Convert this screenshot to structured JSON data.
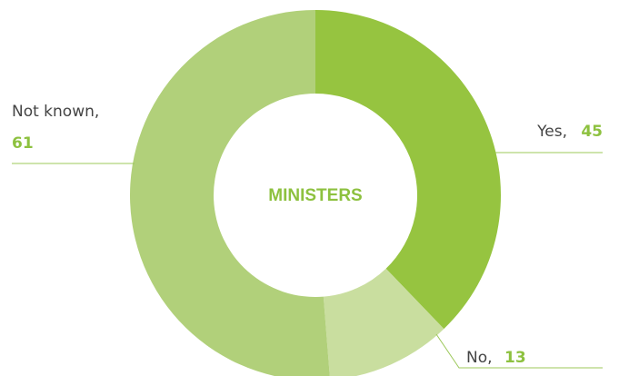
{
  "chart_data": {
    "type": "pie",
    "variant": "donut",
    "center_label": "MINISTERS",
    "categories": [
      "Yes",
      "No",
      "Not known"
    ],
    "values": [
      45,
      13,
      61
    ],
    "colors": [
      "#96c440",
      "#c9de9f",
      "#b1d07a"
    ],
    "value_color": "#8dc13f",
    "label_color": "#444444",
    "leader_line_color": "#9cc85a",
    "labels": {
      "yes": {
        "name": "Yes,",
        "value": "45"
      },
      "no": {
        "name": "No,",
        "value": "13"
      },
      "not_known": {
        "name": "Not known,",
        "value": "61"
      }
    }
  }
}
